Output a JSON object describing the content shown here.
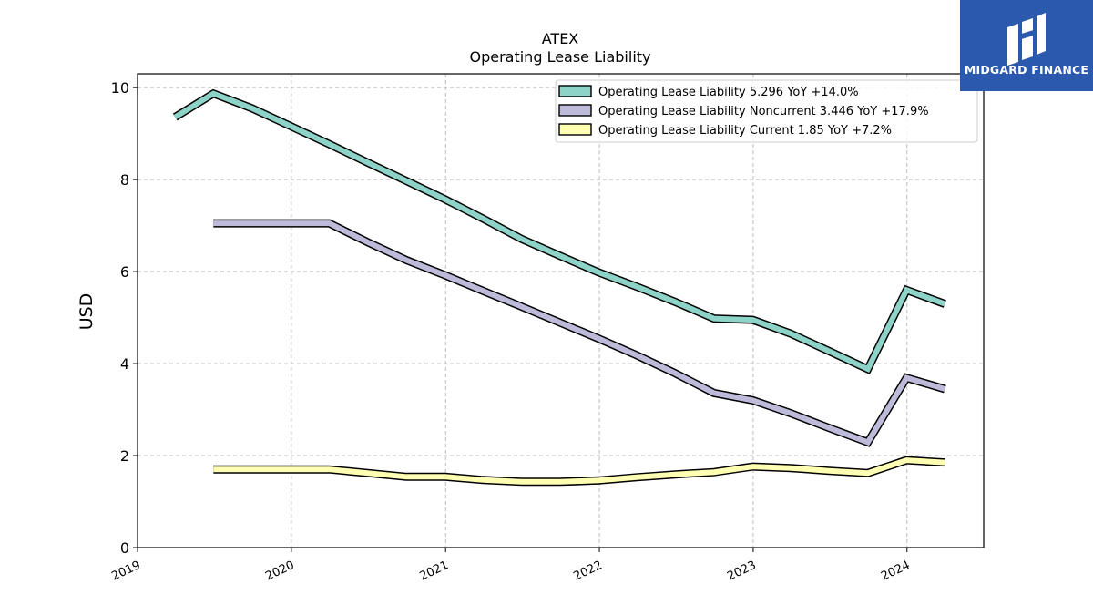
{
  "chart_data": {
    "type": "line",
    "title": "ATEX",
    "subtitle": "Operating Lease Liability",
    "ylabel": "USD",
    "xlabel": "",
    "ylim": [
      0,
      10.3
    ],
    "xlim": [
      "2019-01-01",
      "2024-07-01"
    ],
    "yticks": [
      0,
      2,
      4,
      6,
      8,
      10
    ],
    "xticks": [
      {
        "date": "2019-01-01",
        "label": "2019"
      },
      {
        "date": "2020-01-01",
        "label": "2020"
      },
      {
        "date": "2021-01-01",
        "label": "2021"
      },
      {
        "date": "2022-01-01",
        "label": "2022"
      },
      {
        "date": "2023-01-01",
        "label": "2023"
      },
      {
        "date": "2024-01-01",
        "label": "2024"
      }
    ],
    "grid": true,
    "legend_position": "top-right",
    "series": [
      {
        "name": "Operating Lease Liability",
        "legend": "Operating Lease Liability  5.296 YoY +14.0%",
        "color": "#8dd3c7",
        "points": [
          [
            "2019-03-31",
            9.36
          ],
          [
            "2019-06-30",
            9.87
          ],
          [
            "2019-09-30",
            9.55
          ],
          [
            "2019-12-31",
            9.16
          ],
          [
            "2020-03-31",
            8.77
          ],
          [
            "2020-06-30",
            8.37
          ],
          [
            "2020-09-30",
            7.97
          ],
          [
            "2020-12-31",
            7.57
          ],
          [
            "2021-03-31",
            7.15
          ],
          [
            "2021-06-30",
            6.71
          ],
          [
            "2021-09-30",
            6.34
          ],
          [
            "2021-12-31",
            5.98
          ],
          [
            "2022-03-31",
            5.67
          ],
          [
            "2022-06-30",
            5.34
          ],
          [
            "2022-09-30",
            4.98
          ],
          [
            "2022-12-31",
            4.95
          ],
          [
            "2023-03-31",
            4.65
          ],
          [
            "2023-06-30",
            4.27
          ],
          [
            "2023-09-30",
            3.88
          ],
          [
            "2023-12-31",
            5.6
          ],
          [
            "2024-03-31",
            5.296
          ]
        ]
      },
      {
        "name": "Operating Lease Liability Noncurrent",
        "legend": "Operating Lease Liability Noncurrent  3.446 YoY +17.9%",
        "color": "#bebada",
        "points": [
          [
            "2019-06-30",
            7.05
          ],
          [
            "2019-09-30",
            7.05
          ],
          [
            "2019-12-31",
            7.05
          ],
          [
            "2020-03-31",
            7.05
          ],
          [
            "2020-06-30",
            6.64
          ],
          [
            "2020-09-30",
            6.25
          ],
          [
            "2020-12-31",
            5.92
          ],
          [
            "2021-03-31",
            5.58
          ],
          [
            "2021-06-30",
            5.24
          ],
          [
            "2021-09-30",
            4.89
          ],
          [
            "2021-12-31",
            4.54
          ],
          [
            "2022-03-31",
            4.18
          ],
          [
            "2022-06-30",
            3.79
          ],
          [
            "2022-09-30",
            3.36
          ],
          [
            "2022-12-31",
            3.2
          ],
          [
            "2023-03-31",
            2.92
          ],
          [
            "2023-06-30",
            2.6
          ],
          [
            "2023-09-30",
            2.29
          ],
          [
            "2023-12-31",
            3.69
          ],
          [
            "2024-03-31",
            3.446
          ]
        ]
      },
      {
        "name": "Operating Lease Liability Current",
        "legend": "Operating Lease Liability Current  1.85 YoY +7.2%",
        "color": "#ffffb3",
        "points": [
          [
            "2019-06-30",
            1.7
          ],
          [
            "2019-09-30",
            1.7
          ],
          [
            "2019-12-31",
            1.7
          ],
          [
            "2020-03-31",
            1.7
          ],
          [
            "2020-06-30",
            1.62
          ],
          [
            "2020-09-30",
            1.54
          ],
          [
            "2020-12-31",
            1.54
          ],
          [
            "2021-03-31",
            1.47
          ],
          [
            "2021-06-30",
            1.43
          ],
          [
            "2021-09-30",
            1.43
          ],
          [
            "2021-12-31",
            1.46
          ],
          [
            "2022-03-31",
            1.53
          ],
          [
            "2022-06-30",
            1.59
          ],
          [
            "2022-09-30",
            1.64
          ],
          [
            "2022-12-31",
            1.76
          ],
          [
            "2023-03-31",
            1.73
          ],
          [
            "2023-06-30",
            1.67
          ],
          [
            "2023-09-30",
            1.62
          ],
          [
            "2023-12-31",
            1.9
          ],
          [
            "2024-03-31",
            1.85
          ]
        ]
      }
    ]
  },
  "logo": {
    "text": "MIDGARD FINANCE",
    "color": "#2b59ad"
  }
}
